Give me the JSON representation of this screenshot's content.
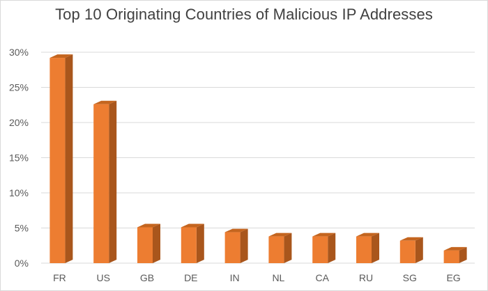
{
  "chart_data": {
    "type": "bar",
    "title": "Top 10 Originating Countries of Malicious IP Addresses",
    "xlabel": "",
    "ylabel": "",
    "categories": [
      "FR",
      "US",
      "GB",
      "DE",
      "IN",
      "NL",
      "CA",
      "RU",
      "SG",
      "EG"
    ],
    "values": [
      29.2,
      22.6,
      5.1,
      5.1,
      4.4,
      3.8,
      3.8,
      3.8,
      3.2,
      1.8
    ],
    "ylim": [
      0,
      30
    ],
    "yticks": [
      0,
      5,
      10,
      15,
      20,
      25,
      30
    ],
    "ytick_labels": [
      "0%",
      "5%",
      "10%",
      "15%",
      "20%",
      "25%",
      "30%"
    ],
    "grid": true,
    "legend": "none",
    "bar_style": "3d-column",
    "colors": {
      "bar_front": "#ed7d31",
      "bar_side": "#a9561c",
      "bar_top": "#c4651f",
      "grid": "#d9d9d9",
      "text": "#595959",
      "title": "#404040"
    }
  }
}
